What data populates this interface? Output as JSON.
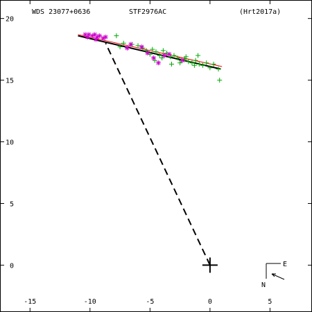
{
  "header": {
    "wds_id": "WDS 23077+0636",
    "discoverer": "STF2976AC",
    "reference": "(Hrt2017a)"
  },
  "compass": {
    "east_label": "E",
    "north_label": "N"
  },
  "colors": {
    "axis": "#000000",
    "observations_a": "#00aa00",
    "observations_b": "#cc00cc",
    "fit_line": "#000000",
    "fit_line_alt": "#ff0000",
    "separation_line": "#000000"
  },
  "chart_data": {
    "type": "scatter",
    "title": "",
    "xlabel": "",
    "ylabel": "",
    "xlim": [
      -17.5,
      8.5
    ],
    "ylim": [
      -3.8,
      21.5
    ],
    "x_ticks": [
      -15,
      -10,
      -5,
      0,
      5
    ],
    "y_ticks": [
      0,
      5,
      10,
      15,
      20
    ],
    "grid": false,
    "primary_star": [
      0,
      0
    ],
    "series": [
      {
        "marker": "plus",
        "color": "#00aa00",
        "points": [
          [
            -7.8,
            18.6
          ],
          [
            -7.5,
            17.7
          ],
          [
            -7.2,
            18.0
          ],
          [
            -6.5,
            17.9
          ],
          [
            -5.6,
            17.6
          ],
          [
            -5.3,
            17.4
          ],
          [
            -5.0,
            17.1
          ],
          [
            -4.8,
            17.5
          ],
          [
            -4.5,
            17.3
          ],
          [
            -4.2,
            17.0
          ],
          [
            -3.9,
            17.4
          ],
          [
            -3.6,
            17.2
          ],
          [
            -3.3,
            16.9
          ],
          [
            -3.0,
            17.0
          ],
          [
            -2.7,
            16.8
          ],
          [
            -2.4,
            16.6
          ],
          [
            -2.1,
            16.7
          ],
          [
            -1.8,
            16.5
          ],
          [
            -1.5,
            16.4
          ],
          [
            -1.2,
            16.6
          ],
          [
            -0.9,
            16.3
          ],
          [
            -0.6,
            16.2
          ],
          [
            -0.3,
            16.4
          ],
          [
            0.0,
            16.0
          ],
          [
            0.3,
            16.3
          ],
          [
            0.7,
            15.9
          ],
          [
            0.8,
            15.0
          ],
          [
            -1.0,
            17.0
          ],
          [
            -2.5,
            16.4
          ],
          [
            -4.0,
            16.8
          ],
          [
            -6.0,
            17.8
          ],
          [
            -3.2,
            16.3
          ],
          [
            -1.3,
            16.2
          ],
          [
            -2.0,
            16.9
          ],
          [
            -4.6,
            16.6
          ]
        ]
      },
      {
        "marker": "asterisk",
        "color": "#cc00cc",
        "points": [
          [
            -10.4,
            18.7
          ],
          [
            -10.1,
            18.7
          ],
          [
            -9.8,
            18.6
          ],
          [
            -9.6,
            18.7
          ],
          [
            -9.4,
            18.5
          ],
          [
            -9.2,
            18.6
          ],
          [
            -8.9,
            18.4
          ],
          [
            -8.7,
            18.5
          ],
          [
            -10.2,
            18.5
          ],
          [
            -9.5,
            18.3
          ],
          [
            -6.6,
            17.9
          ],
          [
            -5.7,
            17.7
          ],
          [
            -5.2,
            17.2
          ],
          [
            -4.7,
            16.8
          ],
          [
            -4.3,
            16.4
          ],
          [
            -3.4,
            17.1
          ],
          [
            -2.3,
            16.6
          ],
          [
            -3.8,
            17.0
          ],
          [
            -6.9,
            17.6
          ]
        ]
      }
    ],
    "fit_lines": [
      {
        "color": "#000000",
        "from": [
          -11.0,
          18.6
        ],
        "to": [
          0.9,
          15.9
        ]
      },
      {
        "color": "#ff0000",
        "from": [
          -11.0,
          18.7
        ],
        "to": [
          1.0,
          16.1
        ]
      }
    ],
    "separation_line": {
      "from": [
        0.0,
        0.0
      ],
      "to": [
        -8.7,
        18.0
      ],
      "style": "dashed"
    }
  }
}
